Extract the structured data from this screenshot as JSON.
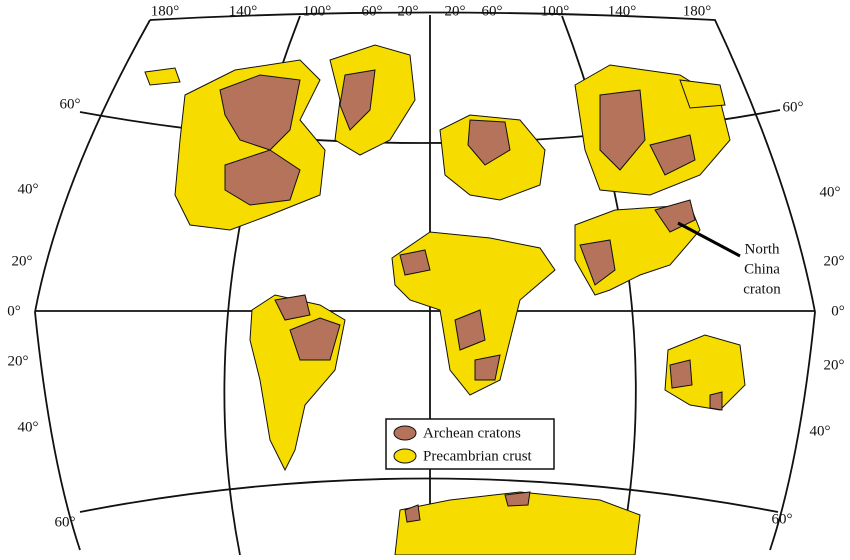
{
  "top_longitude_labels": [
    "180°",
    "140°",
    "100°",
    "60°",
    "20°",
    "20°",
    "60°",
    "100°",
    "140°",
    "180°"
  ],
  "left_latitude_labels": [
    "60°",
    "40°",
    "20°",
    "0°",
    "20°",
    "40°",
    "60°"
  ],
  "right_latitude_labels": [
    "60°",
    "40°",
    "20°",
    "0°",
    "20°",
    "40°",
    "60°"
  ],
  "legend": [
    {
      "label": "Archean cratons",
      "color": "#b5735b"
    },
    {
      "label": "Precambrian crust",
      "color": "#f7dc00"
    }
  ],
  "annotation": {
    "lines": [
      "North",
      "China",
      "craton"
    ]
  }
}
